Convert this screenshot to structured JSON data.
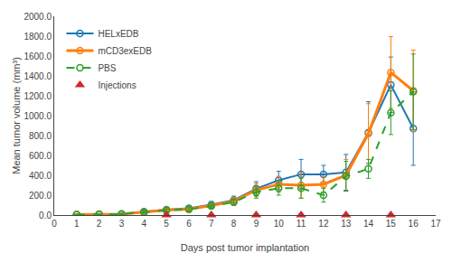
{
  "chart_data": {
    "type": "line",
    "xlabel": "Days post tumor implantation",
    "ylabel": "Mean tumor volume (mm³)",
    "x": [
      1,
      2,
      3,
      4,
      5,
      6,
      7,
      8,
      9,
      10,
      11,
      12,
      13,
      14,
      15,
      16
    ],
    "series": [
      {
        "name": "HELxEDB",
        "type": "line",
        "line_style": "solid",
        "marker": "circle-open",
        "values": [
          5,
          8,
          12,
          35,
          55,
          68,
          105,
          150,
          265,
          350,
          410,
          410,
          430,
          830,
          1310,
          870
        ],
        "error": [
          3,
          4,
          6,
          15,
          18,
          20,
          30,
          40,
          70,
          90,
          150,
          90,
          180,
          310,
          280,
          370
        ]
      },
      {
        "name": "mCD3exEDB",
        "type": "line",
        "line_style": "solid",
        "marker": "circle-open",
        "values": [
          4,
          7,
          10,
          30,
          50,
          60,
          95,
          140,
          250,
          310,
          300,
          310,
          400,
          820,
          1435,
          1250
        ],
        "error": [
          3,
          4,
          5,
          12,
          16,
          17,
          25,
          35,
          65,
          80,
          130,
          80,
          160,
          300,
          360,
          410
        ]
      },
      {
        "name": "PBS",
        "type": "line",
        "line_style": "dashed",
        "marker": "circle-open",
        "values": [
          4,
          7,
          10,
          28,
          48,
          58,
          90,
          130,
          230,
          270,
          270,
          200,
          390,
          465,
          1030,
          1240
        ],
        "error": [
          3,
          4,
          5,
          10,
          15,
          16,
          22,
          32,
          60,
          70,
          100,
          70,
          150,
          95,
          220,
          380
        ]
      },
      {
        "name": "Injections",
        "type": "scatter",
        "marker": "triangle-up",
        "x": [
          5,
          7,
          9,
          11,
          13,
          15
        ],
        "values": [
          0,
          0,
          0,
          0,
          0,
          0
        ]
      }
    ],
    "xlim": [
      0,
      17
    ],
    "xticks": [
      0,
      1,
      2,
      3,
      4,
      5,
      6,
      7,
      8,
      9,
      10,
      11,
      12,
      13,
      14,
      15,
      16,
      17
    ],
    "ylim": [
      0,
      2000
    ],
    "yticks": [
      {
        "value": 0,
        "label": "0.0"
      },
      {
        "value": 200,
        "label": "200.0"
      },
      {
        "value": 400,
        "label": "400.0"
      },
      {
        "value": 600,
        "label": "600.0"
      },
      {
        "value": 800,
        "label": "800.0"
      },
      {
        "value": 1000,
        "label": "1000.0"
      },
      {
        "value": 1200,
        "label": "1200.0"
      },
      {
        "value": 1400,
        "label": "1400.0"
      },
      {
        "value": 1600,
        "label": "1600.0"
      },
      {
        "value": 1800,
        "label": "1800.0"
      },
      {
        "value": 2000,
        "label": "2000.0"
      }
    ],
    "grid": false,
    "legend": "upper left"
  }
}
